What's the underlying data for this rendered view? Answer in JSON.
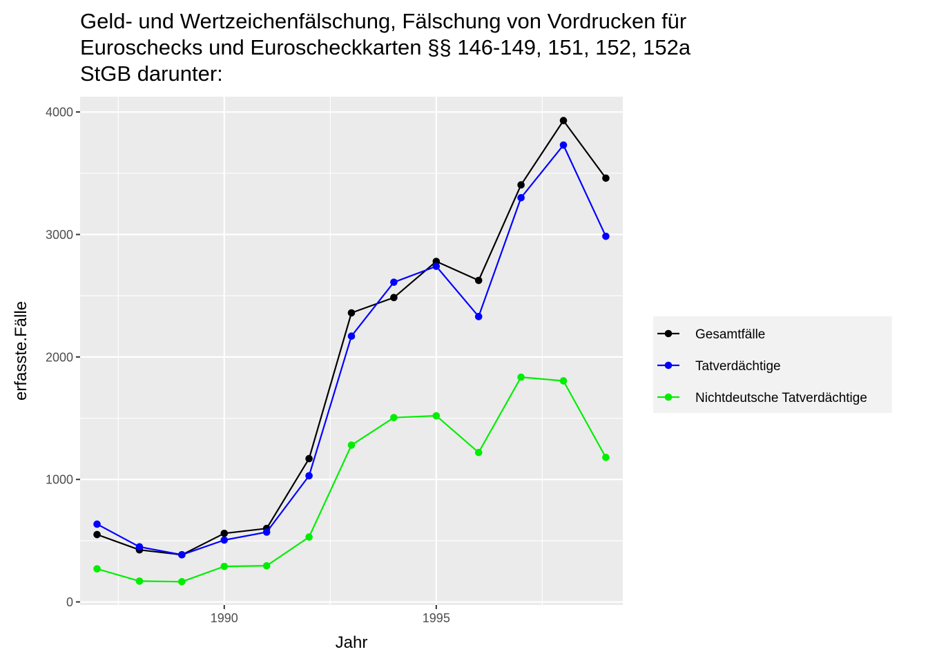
{
  "chart_data": {
    "type": "line",
    "title_lines": [
      "Geld- und Wertzeichenfälschung, Fälschung von Vordrucken für",
      "Euroschecks und Euroscheckkarten §§ 146-149, 151, 152, 152a",
      "StGB darunter:"
    ],
    "xlabel": "Jahr",
    "ylabel": "erfasste.Fälle",
    "xlim": [
      1986.6,
      1999.4
    ],
    "ylim": [
      -25,
      4125
    ],
    "x_ticks": [
      1990,
      1995
    ],
    "x_tick_labels": [
      "1990",
      "1995"
    ],
    "y_ticks": [
      0,
      1000,
      2000,
      3000,
      4000
    ],
    "y_tick_labels": [
      "0",
      "1000",
      "2000",
      "3000",
      "4000"
    ],
    "grid": true,
    "legend_position": "right",
    "x": [
      1987,
      1988,
      1989,
      1990,
      1991,
      1992,
      1993,
      1994,
      1995,
      1996,
      1997,
      1998,
      1999
    ],
    "series": [
      {
        "name": "Gesamtfälle",
        "color": "#000000",
        "values": [
          550,
          425,
          385,
          560,
          600,
          1170,
          2360,
          2485,
          2780,
          2625,
          3405,
          3930,
          3460
        ]
      },
      {
        "name": "Tatverdächtige",
        "color": "#0000ff",
        "values": [
          635,
          450,
          385,
          505,
          570,
          1030,
          2170,
          2610,
          2740,
          2330,
          3300,
          3730,
          2985
        ]
      },
      {
        "name": "Nichtdeutsche Tatverdächtige",
        "color": "#00ee00",
        "values": [
          270,
          170,
          165,
          290,
          295,
          530,
          1280,
          1505,
          1520,
          1220,
          1835,
          1805,
          1180
        ]
      }
    ]
  }
}
